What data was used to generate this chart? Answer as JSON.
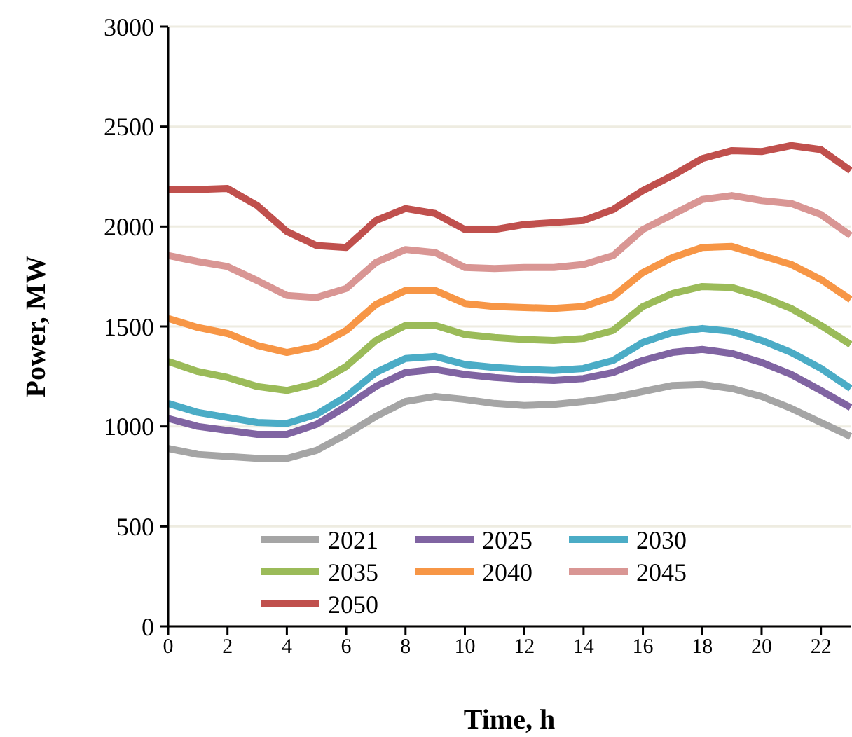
{
  "chart_data": {
    "type": "line",
    "xlabel": "Time, h",
    "ylabel": "Power, MW",
    "x": [
      0,
      1,
      2,
      3,
      4,
      5,
      6,
      7,
      8,
      9,
      10,
      11,
      12,
      13,
      14,
      15,
      16,
      17,
      18,
      19,
      20,
      21,
      22,
      23
    ],
    "xlim": [
      0,
      23
    ],
    "xticks": [
      0,
      2,
      4,
      6,
      8,
      10,
      12,
      14,
      16,
      18,
      20,
      22
    ],
    "ylim": [
      0,
      3000
    ],
    "yticks": [
      0,
      500,
      1000,
      1500,
      2000,
      2500,
      3000
    ],
    "grid": "y",
    "legend": "bottom",
    "marker": "none",
    "line_style": "solid",
    "series": [
      {
        "name": "2021",
        "color": "#a5a5a5",
        "values": [
          890,
          860,
          850,
          840,
          840,
          880,
          960,
          1050,
          1125,
          1150,
          1135,
          1115,
          1105,
          1110,
          1125,
          1145,
          1175,
          1205,
          1210,
          1190,
          1150,
          1090,
          1020,
          950
        ]
      },
      {
        "name": "2025",
        "color": "#8064a2",
        "values": [
          1040,
          1000,
          980,
          960,
          960,
          1010,
          1100,
          1200,
          1270,
          1285,
          1260,
          1245,
          1235,
          1230,
          1240,
          1270,
          1330,
          1370,
          1385,
          1365,
          1320,
          1260,
          1180,
          1095
        ]
      },
      {
        "name": "2030",
        "color": "#4bacc6",
        "values": [
          1115,
          1070,
          1045,
          1020,
          1015,
          1060,
          1150,
          1270,
          1340,
          1350,
          1310,
          1295,
          1285,
          1280,
          1290,
          1330,
          1420,
          1470,
          1490,
          1475,
          1430,
          1370,
          1290,
          1190
        ]
      },
      {
        "name": "2035",
        "color": "#9bbb59",
        "values": [
          1325,
          1275,
          1245,
          1200,
          1180,
          1215,
          1300,
          1430,
          1505,
          1505,
          1460,
          1445,
          1435,
          1430,
          1440,
          1480,
          1600,
          1665,
          1700,
          1695,
          1650,
          1590,
          1505,
          1410
        ]
      },
      {
        "name": "2040",
        "color": "#f79646",
        "values": [
          1540,
          1495,
          1465,
          1405,
          1370,
          1400,
          1480,
          1610,
          1680,
          1680,
          1615,
          1600,
          1595,
          1590,
          1600,
          1650,
          1770,
          1845,
          1895,
          1900,
          1855,
          1810,
          1735,
          1635
        ]
      },
      {
        "name": "2045",
        "color": "#d99694",
        "values": [
          1855,
          1825,
          1800,
          1730,
          1655,
          1645,
          1690,
          1820,
          1885,
          1870,
          1795,
          1790,
          1795,
          1795,
          1810,
          1855,
          1985,
          2060,
          2135,
          2155,
          2130,
          2115,
          2060,
          1955
        ]
      },
      {
        "name": "2050",
        "color": "#c0504d",
        "values": [
          2185,
          2185,
          2190,
          2105,
          1975,
          1905,
          1895,
          2030,
          2090,
          2065,
          1985,
          1985,
          2010,
          2020,
          2030,
          2085,
          2180,
          2255,
          2340,
          2380,
          2375,
          2405,
          2385,
          2280
        ]
      }
    ]
  }
}
